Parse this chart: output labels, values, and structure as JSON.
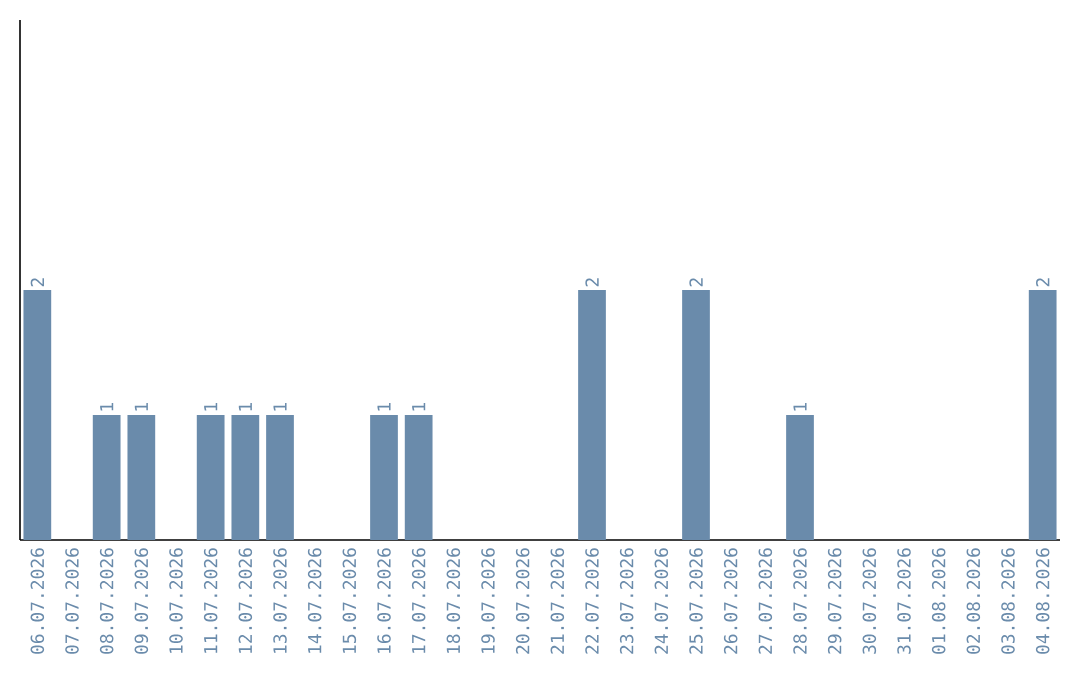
{
  "chart_data": {
    "type": "bar",
    "categories": [
      "06.07.2026",
      "07.07.2026",
      "08.07.2026",
      "09.07.2026",
      "10.07.2026",
      "11.07.2026",
      "12.07.2026",
      "13.07.2026",
      "14.07.2026",
      "15.07.2026",
      "16.07.2026",
      "17.07.2026",
      "18.07.2026",
      "19.07.2026",
      "20.07.2026",
      "21.07.2026",
      "22.07.2026",
      "23.07.2026",
      "24.07.2026",
      "25.07.2026",
      "26.07.2026",
      "27.07.2026",
      "28.07.2026",
      "29.07.2026",
      "30.07.2026",
      "31.07.2026",
      "01.08.2026",
      "02.08.2026",
      "03.08.2026",
      "04.08.2026"
    ],
    "values": [
      2,
      0,
      1,
      1,
      0,
      1,
      1,
      1,
      0,
      0,
      1,
      1,
      0,
      0,
      0,
      0,
      2,
      0,
      0,
      2,
      0,
      0,
      1,
      0,
      0,
      0,
      0,
      0,
      0,
      2
    ],
    "value_labels": [
      "2",
      null,
      "1",
      "1",
      null,
      "1",
      "1",
      "1",
      null,
      null,
      "1",
      "1",
      null,
      null,
      null,
      null,
      "2",
      null,
      null,
      "2",
      null,
      null,
      "1",
      null,
      null,
      null,
      null,
      null,
      null,
      "2"
    ],
    "color": "#6a8bab",
    "ylim": [
      0,
      4.16
    ]
  }
}
